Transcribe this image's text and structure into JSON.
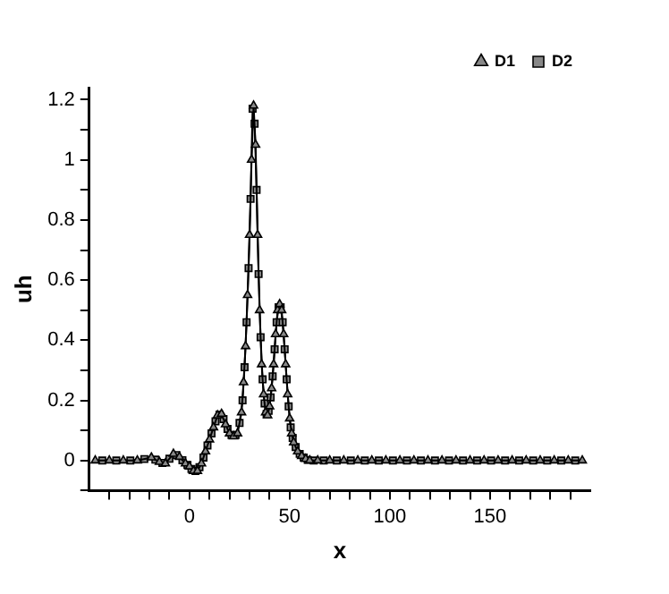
{
  "chart_data": {
    "type": "line",
    "xlabel": "x",
    "ylabel": "uh",
    "xlim": [
      -50,
      200
    ],
    "ylim": [
      -0.1,
      1.24
    ],
    "xticks": [
      {
        "value": -40,
        "label": null
      },
      {
        "value": -30,
        "label": null
      },
      {
        "value": -20,
        "label": null
      },
      {
        "value": -10,
        "label": null
      },
      0,
      {
        "value": 10,
        "label": null
      },
      {
        "value": 20,
        "label": null
      },
      {
        "value": 30,
        "label": null
      },
      {
        "value": 40,
        "label": null
      },
      50,
      {
        "value": 60,
        "label": null
      },
      {
        "value": 70,
        "label": null
      },
      {
        "value": 80,
        "label": null
      },
      {
        "value": 90,
        "label": null
      },
      100,
      {
        "value": 110,
        "label": null
      },
      {
        "value": 120,
        "label": null
      },
      {
        "value": 130,
        "label": null
      },
      {
        "value": 140,
        "label": null
      },
      150,
      {
        "value": 160,
        "label": null
      },
      {
        "value": 170,
        "label": null
      },
      {
        "value": 180,
        "label": null
      },
      {
        "value": 190,
        "label": null
      }
    ],
    "yticks": [
      {
        "value": -0.1,
        "label": null
      },
      0,
      {
        "value": 0.1,
        "label": null
      },
      0.2,
      {
        "value": 0.3,
        "label": null
      },
      0.4,
      {
        "value": 0.5,
        "label": null
      },
      0.6,
      {
        "value": 0.7,
        "label": null
      },
      0.8,
      {
        "value": 0.9,
        "label": null
      },
      1,
      {
        "value": 1.1,
        "label": null
      },
      1.2
    ],
    "series": [
      {
        "name": "D1",
        "color": "#000000",
        "marker": "triangle",
        "x": [
          -47,
          -40,
          -33,
          -26,
          -19,
          -15,
          -12,
          -8,
          -5,
          -2,
          0,
          2,
          4,
          6,
          8,
          10,
          12,
          14,
          16,
          18,
          20,
          22,
          24,
          26,
          27,
          28,
          29,
          30,
          31,
          32,
          33,
          34,
          35,
          36,
          37,
          38,
          39,
          40,
          41,
          42,
          43,
          44,
          45,
          46,
          47,
          48,
          49,
          50,
          51,
          52,
          54,
          56,
          58,
          60,
          64,
          70,
          77,
          84,
          91,
          98,
          105,
          112,
          119,
          126,
          133,
          140,
          147,
          154,
          161,
          168,
          175,
          182,
          189,
          196
        ],
        "values": [
          0,
          0,
          0,
          0,
          0.01,
          -0.005,
          -0.01,
          0.022,
          0.012,
          -0.01,
          -0.02,
          -0.035,
          -0.035,
          -0.01,
          0.03,
          0.07,
          0.11,
          0.15,
          0.155,
          0.12,
          0.09,
          0.08,
          0.09,
          0.16,
          0.26,
          0.38,
          0.55,
          0.75,
          1,
          1.18,
          1.05,
          0.75,
          0.5,
          0.32,
          0.22,
          0.16,
          0.15,
          0.18,
          0.24,
          0.32,
          0.42,
          0.5,
          0.52,
          0.5,
          0.42,
          0.32,
          0.22,
          0.14,
          0.09,
          0.06,
          0.03,
          0.015,
          0.005,
          0,
          0,
          0,
          0,
          0,
          0,
          0,
          0,
          0,
          0,
          0,
          0,
          0,
          0,
          0,
          0,
          0,
          0,
          0,
          0,
          0
        ]
      },
      {
        "name": "D2",
        "color": "#000000",
        "marker": "square",
        "x": [
          -43.5,
          -36.5,
          -29.5,
          -22.5,
          -17,
          -13.5,
          -10,
          -6.5,
          -3.5,
          -1,
          1,
          3,
          5,
          7,
          9,
          11,
          13,
          15,
          17,
          19,
          21,
          23,
          25,
          26.5,
          27.5,
          28.5,
          29.5,
          30.5,
          31.5,
          32.5,
          33.5,
          34.5,
          35.5,
          36.5,
          37.5,
          38.5,
          39.5,
          40.5,
          41.5,
          42.5,
          43.5,
          44.5,
          45.5,
          46.5,
          47.5,
          48.5,
          49.5,
          50.5,
          51.5,
          53,
          55,
          57,
          59,
          62,
          67,
          73.5,
          80.5,
          87.5,
          94.5,
          101.5,
          108.5,
          115.5,
          122.5,
          129.5,
          136.5,
          143.5,
          150.5,
          157.5,
          164.5,
          171.5,
          178.5,
          185.5,
          192.5
        ],
        "values": [
          0,
          0,
          0,
          0.005,
          0.003,
          -0.008,
          0.006,
          0.018,
          0.001,
          -0.015,
          -0.028,
          -0.035,
          -0.022,
          0.01,
          0.05,
          0.09,
          0.13,
          0.153,
          0.138,
          0.105,
          0.085,
          0.085,
          0.125,
          0.2,
          0.31,
          0.46,
          0.64,
          0.87,
          1.17,
          1.12,
          0.9,
          0.62,
          0.41,
          0.27,
          0.19,
          0.155,
          0.165,
          0.21,
          0.28,
          0.37,
          0.46,
          0.51,
          0.51,
          0.46,
          0.37,
          0.27,
          0.18,
          0.11,
          0.075,
          0.045,
          0.022,
          0.01,
          0.002,
          0,
          0,
          0,
          0,
          0,
          0,
          0,
          0,
          0,
          0,
          0,
          0,
          0,
          0,
          0,
          0,
          0,
          0,
          0,
          0
        ]
      }
    ],
    "legend": "top right",
    "grid": false
  }
}
